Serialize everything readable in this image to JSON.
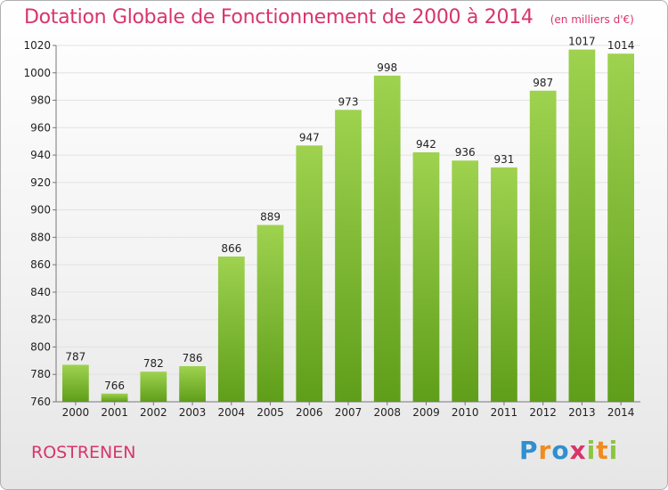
{
  "title": "Dotation Globale de Fonctionnement de 2000 à 2014",
  "unit": "(en milliers d'€)",
  "commune": "ROSTRENEN",
  "logo_text": "Proxiti",
  "colors": {
    "title": "#d8356a",
    "bar_top": "#9ed24f",
    "bar_bottom": "#5f9e1a",
    "grid": "#e2e2e2",
    "axis": "#777777"
  },
  "chart_data": {
    "type": "bar",
    "categories": [
      "2000",
      "2001",
      "2002",
      "2003",
      "2004",
      "2005",
      "2006",
      "2007",
      "2008",
      "2009",
      "2010",
      "2011",
      "2012",
      "2013",
      "2014"
    ],
    "values": [
      787,
      766,
      782,
      786,
      866,
      889,
      947,
      973,
      998,
      942,
      936,
      931,
      987,
      1017,
      1014
    ],
    "ylim": [
      760,
      1020
    ],
    "yticks": [
      760,
      780,
      800,
      820,
      840,
      860,
      880,
      900,
      920,
      940,
      960,
      980,
      1000,
      1020
    ],
    "grid": true,
    "legend": "none"
  }
}
